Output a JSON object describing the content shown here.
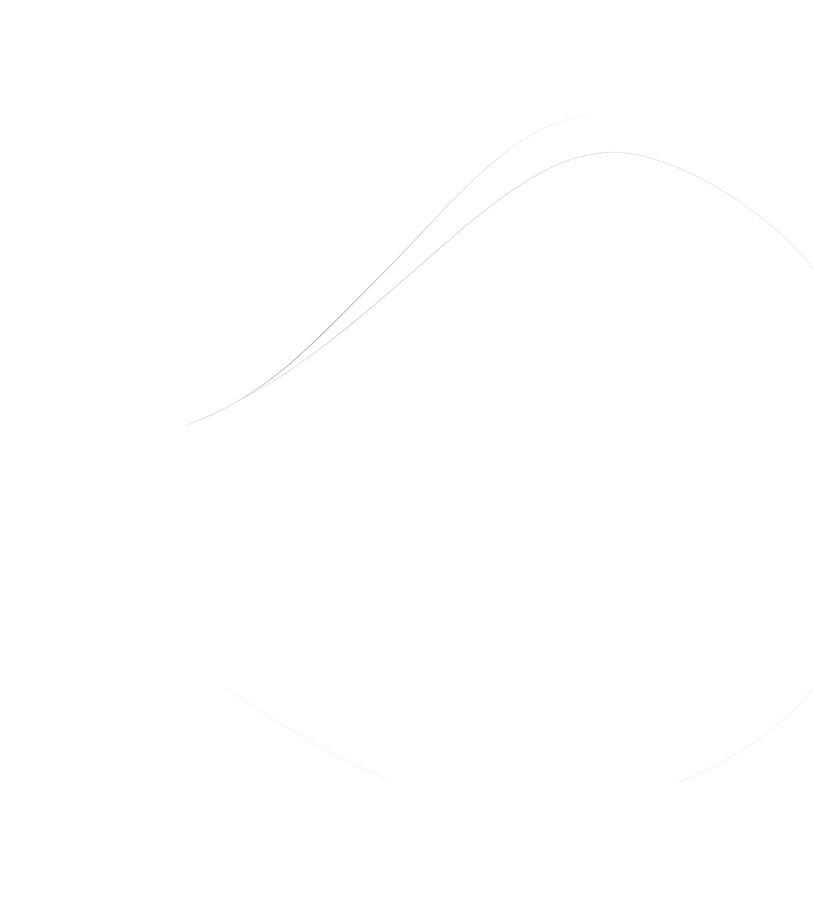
{
  "background": {
    "color": "#ffffff",
    "decoration": "wave-lines",
    "line_colors": [
      "#9a9a9a",
      "#d8d8d8",
      "#f0f0f0"
    ]
  }
}
